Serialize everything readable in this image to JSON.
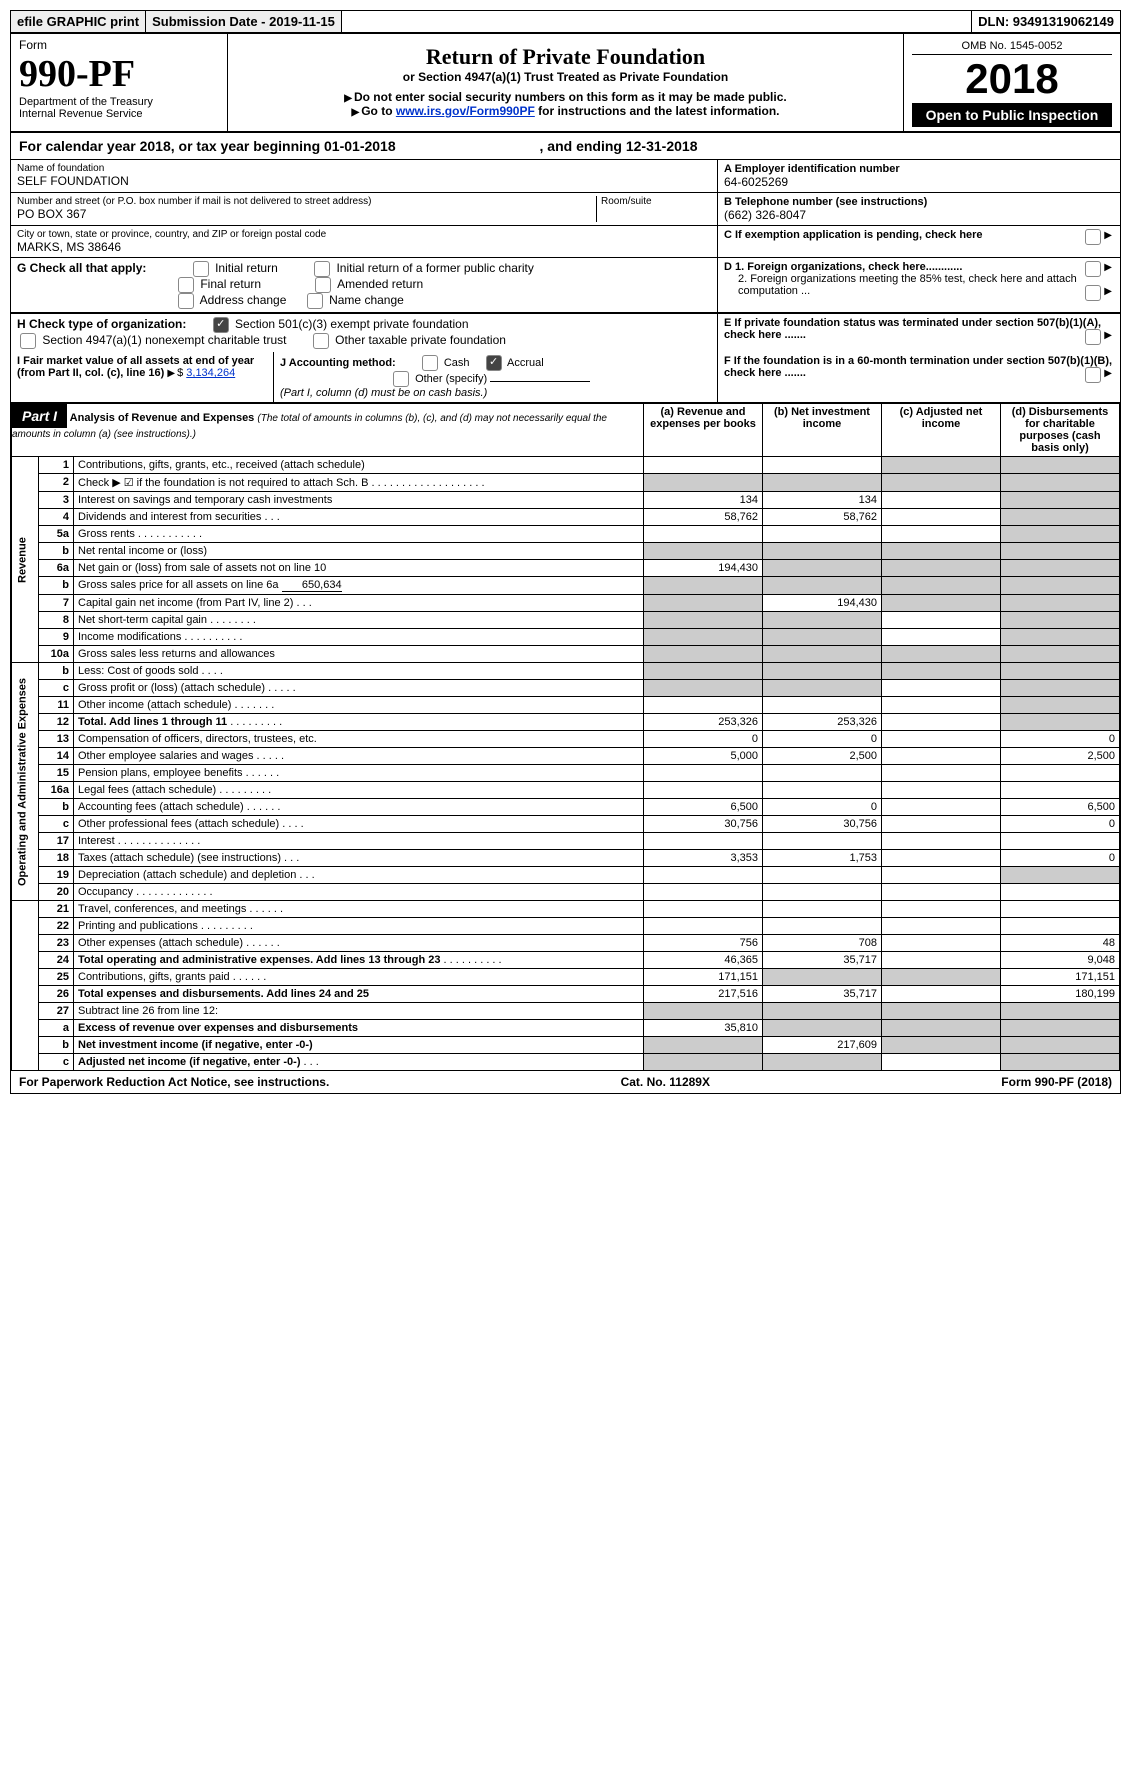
{
  "topbar": {
    "efile": "efile GRAPHIC print",
    "subdate_lbl": "Submission Date - 2019-11-15",
    "dln": "DLN: 93491319062149"
  },
  "header": {
    "form_lbl": "Form",
    "form_num": "990-PF",
    "dept": "Department of the Treasury",
    "irs": "Internal Revenue Service",
    "title": "Return of Private Foundation",
    "subtitle": "or Section 4947(a)(1) Trust Treated as Private Foundation",
    "warn1": "Do not enter social security numbers on this form as it may be made public.",
    "warn2_pre": "Go to ",
    "warn2_link": "www.irs.gov/Form990PF",
    "warn2_post": " for instructions and the latest information.",
    "omb": "OMB No. 1545-0052",
    "year": "2018",
    "open": "Open to Public Inspection"
  },
  "calyr": {
    "pre": "For calendar year 2018, or tax year beginning 01-01-2018",
    "mid": ", and ending 12-31-2018"
  },
  "entity": {
    "name_lbl": "Name of foundation",
    "name": "SELF FOUNDATION",
    "addr_lbl": "Number and street (or P.O. box number if mail is not delivered to street address)",
    "addr": "PO BOX 367",
    "room_lbl": "Room/suite",
    "city_lbl": "City or town, state or province, country, and ZIP or foreign postal code",
    "city": "MARKS, MS  38646",
    "ein_lbl": "A Employer identification number",
    "ein": "64-6025269",
    "tel_lbl": "B Telephone number (see instructions)",
    "tel": "(662) 326-8047",
    "c": "C  If exemption application is pending, check here",
    "d1": "D 1. Foreign organizations, check here............",
    "d2": "2. Foreign organizations meeting the 85% test, check here and attach computation ...",
    "e": "E  If private foundation status was terminated under section 507(b)(1)(A), check here .......",
    "f": "F  If the foundation is in a 60-month termination under section 507(b)(1)(B), check here ......."
  },
  "g": {
    "lbl": "G Check all that apply:",
    "o1": "Initial return",
    "o2": "Initial return of a former public charity",
    "o3": "Final return",
    "o4": "Amended return",
    "o5": "Address change",
    "o6": "Name change"
  },
  "h": {
    "lbl": "H Check type of organization:",
    "o1": "Section 501(c)(3) exempt private foundation",
    "o2": "Section 4947(a)(1) nonexempt charitable trust",
    "o3": "Other taxable private foundation"
  },
  "i": {
    "lbl": "I Fair market value of all assets at end of year (from Part II, col. (c), line 16)",
    "val": "3,134,264"
  },
  "j": {
    "lbl": "J Accounting method:",
    "o1": "Cash",
    "o2": "Accrual",
    "o3": "Other (specify)",
    "note": "(Part I, column (d) must be on cash basis.)"
  },
  "part1": {
    "hdr": "Part I",
    "title": "Analysis of Revenue and Expenses",
    "note": "(The total of amounts in columns (b), (c), and (d) may not necessarily equal the amounts in column (a) (see instructions).)",
    "cols": {
      "a": "(a) Revenue and expenses per books",
      "b": "(b) Net investment income",
      "c": "(c) Adjusted net income",
      "d": "(d) Disbursements for charitable purposes (cash basis only)"
    }
  },
  "sections": {
    "rev": "Revenue",
    "oae": "Operating and Administrative Expenses"
  },
  "lines": [
    {
      "n": "1",
      "d": "Contributions, gifts, grants, etc., received (attach schedule)",
      "a": "",
      "b": "",
      "c": "s",
      "dd": "s"
    },
    {
      "n": "2",
      "d": "Check ▶ ☑ if the foundation is not required to attach Sch. B",
      "a": "s",
      "b": "s",
      "c": "s",
      "dd": "s",
      "dots": ". . . . . . . . . . . . . . . . . . ."
    },
    {
      "n": "3",
      "d": "Interest on savings and temporary cash investments",
      "a": "134",
      "b": "134",
      "c": "",
      "dd": "s"
    },
    {
      "n": "4",
      "d": "Dividends and interest from securities",
      "a": "58,762",
      "b": "58,762",
      "c": "",
      "dd": "s",
      "dots": ". . ."
    },
    {
      "n": "5a",
      "d": "Gross rents",
      "a": "",
      "b": "",
      "c": "",
      "dd": "s",
      "dots": ". . . . . . . . . . ."
    },
    {
      "n": "b",
      "d": "Net rental income or (loss)",
      "a": "s",
      "b": "s",
      "c": "s",
      "dd": "s"
    },
    {
      "n": "6a",
      "d": "Net gain or (loss) from sale of assets not on line 10",
      "a": "194,430",
      "b": "s",
      "c": "s",
      "dd": "s"
    },
    {
      "n": "b",
      "d": "Gross sales price for all assets on line 6a",
      "inline": "650,634",
      "a": "s",
      "b": "s",
      "c": "s",
      "dd": "s"
    },
    {
      "n": "7",
      "d": "Capital gain net income (from Part IV, line 2)",
      "a": "s",
      "b": "194,430",
      "c": "s",
      "dd": "s",
      "dots": ". . ."
    },
    {
      "n": "8",
      "d": "Net short-term capital gain",
      "a": "s",
      "b": "s",
      "c": "",
      "dd": "s",
      "dots": ". . . . . . . ."
    },
    {
      "n": "9",
      "d": "Income modifications",
      "a": "s",
      "b": "s",
      "c": "",
      "dd": "s",
      "dots": ". . . . . . . . . ."
    },
    {
      "n": "10a",
      "d": "Gross sales less returns and allowances",
      "a": "s",
      "b": "s",
      "c": "s",
      "dd": "s"
    },
    {
      "n": "b",
      "d": "Less: Cost of goods sold",
      "a": "s",
      "b": "s",
      "c": "s",
      "dd": "s",
      "dots": ". . . ."
    },
    {
      "n": "c",
      "d": "Gross profit or (loss) (attach schedule)",
      "a": "s",
      "b": "s",
      "c": "",
      "dd": "s",
      "dots": ". . . . ."
    },
    {
      "n": "11",
      "d": "Other income (attach schedule)",
      "a": "",
      "b": "",
      "c": "",
      "dd": "s",
      "dots": ". . . . . . ."
    },
    {
      "n": "12",
      "d": "Total. Add lines 1 through 11",
      "bold": true,
      "a": "253,326",
      "b": "253,326",
      "c": "",
      "dd": "s",
      "dots": ". . . . . . . . ."
    },
    {
      "n": "13",
      "d": "Compensation of officers, directors, trustees, etc.",
      "a": "0",
      "b": "0",
      "c": "",
      "dd": "0"
    },
    {
      "n": "14",
      "d": "Other employee salaries and wages",
      "a": "5,000",
      "b": "2,500",
      "c": "",
      "dd": "2,500",
      "dots": ". . . . ."
    },
    {
      "n": "15",
      "d": "Pension plans, employee benefits",
      "a": "",
      "b": "",
      "c": "",
      "dd": "",
      "dots": ". . . . . ."
    },
    {
      "n": "16a",
      "d": "Legal fees (attach schedule)",
      "a": "",
      "b": "",
      "c": "",
      "dd": "",
      "dots": ". . . . . . . . ."
    },
    {
      "n": "b",
      "d": "Accounting fees (attach schedule)",
      "a": "6,500",
      "b": "0",
      "c": "",
      "dd": "6,500",
      "dots": ". . . . . ."
    },
    {
      "n": "c",
      "d": "Other professional fees (attach schedule)",
      "a": "30,756",
      "b": "30,756",
      "c": "",
      "dd": "0",
      "dots": ". . . ."
    },
    {
      "n": "17",
      "d": "Interest",
      "a": "",
      "b": "",
      "c": "",
      "dd": "",
      "dots": ". . . . . . . . . . . . . ."
    },
    {
      "n": "18",
      "d": "Taxes (attach schedule) (see instructions)",
      "a": "3,353",
      "b": "1,753",
      "c": "",
      "dd": "0",
      "dots": ". . ."
    },
    {
      "n": "19",
      "d": "Depreciation (attach schedule) and depletion",
      "a": "",
      "b": "",
      "c": "",
      "dd": "s",
      "dots": ". . ."
    },
    {
      "n": "20",
      "d": "Occupancy",
      "a": "",
      "b": "",
      "c": "",
      "dd": "",
      "dots": ". . . . . . . . . . . . ."
    },
    {
      "n": "21",
      "d": "Travel, conferences, and meetings",
      "a": "",
      "b": "",
      "c": "",
      "dd": "",
      "dots": ". . . . . ."
    },
    {
      "n": "22",
      "d": "Printing and publications",
      "a": "",
      "b": "",
      "c": "",
      "dd": "",
      "dots": ". . . . . . . . ."
    },
    {
      "n": "23",
      "d": "Other expenses (attach schedule)",
      "a": "756",
      "b": "708",
      "c": "",
      "dd": "48",
      "dots": ". . . . . ."
    },
    {
      "n": "24",
      "d": "Total operating and administrative expenses. Add lines 13 through 23",
      "bold": true,
      "a": "46,365",
      "b": "35,717",
      "c": "",
      "dd": "9,048",
      "dots": ". . . . . . . . . ."
    },
    {
      "n": "25",
      "d": "Contributions, gifts, grants paid",
      "a": "171,151",
      "b": "s",
      "c": "s",
      "dd": "171,151",
      "dots": ". . . . . ."
    },
    {
      "n": "26",
      "d": "Total expenses and disbursements. Add lines 24 and 25",
      "bold": true,
      "a": "217,516",
      "b": "35,717",
      "c": "",
      "dd": "180,199"
    },
    {
      "n": "27",
      "d": "Subtract line 26 from line 12:",
      "a": "s",
      "b": "s",
      "c": "s",
      "dd": "s"
    },
    {
      "n": "a",
      "d": "Excess of revenue over expenses and disbursements",
      "bold": true,
      "a": "35,810",
      "b": "s",
      "c": "s",
      "dd": "s"
    },
    {
      "n": "b",
      "d": "Net investment income (if negative, enter -0-)",
      "bold": true,
      "a": "s",
      "b": "217,609",
      "c": "s",
      "dd": "s"
    },
    {
      "n": "c",
      "d": "Adjusted net income (if negative, enter -0-)",
      "bold": true,
      "a": "s",
      "b": "s",
      "c": "",
      "dd": "s",
      "dots": ". . ."
    }
  ],
  "footer": {
    "pra": "For Paperwork Reduction Act Notice, see instructions.",
    "cat": "Cat. No. 11289X",
    "form": "Form 990-PF (2018)"
  }
}
